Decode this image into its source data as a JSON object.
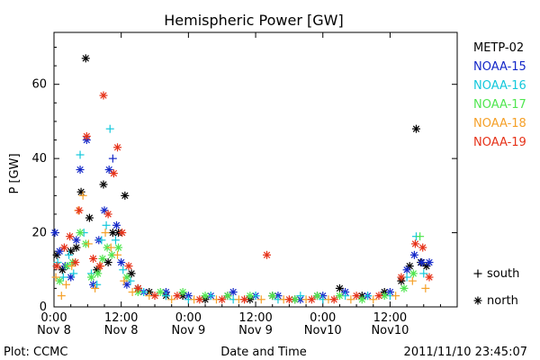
{
  "chart_data": {
    "type": "scatter",
    "title": "Hemispheric Power [GW]",
    "ylabel": "P [GW]",
    "xlabel": "Date and Time",
    "ylim": [
      0,
      74
    ],
    "xlim": [
      "2011-11-08 00:00",
      "2011-11-10 23:59"
    ],
    "yticks": [
      "0",
      "20",
      "40",
      "60"
    ],
    "yticks_values": [
      0,
      20,
      40,
      60
    ],
    "xticks": [
      {
        "time": "0:00",
        "date": "Nov 8"
      },
      {
        "time": "12:00",
        "date": "Nov 8"
      },
      {
        "time": "0:00",
        "date": "Nov 9"
      },
      {
        "time": "12:00",
        "date": "Nov 9"
      },
      {
        "time": "0:00",
        "date": "Nov10"
      },
      {
        "time": "12:00",
        "date": "Nov10"
      }
    ],
    "xticks_values": [
      "2011-11-08 00:00",
      "2011-11-08 12:00",
      "2011-11-09 00:00",
      "2011-11-09 12:00",
      "2011-11-10 00:00",
      "2011-11-10 12:00"
    ],
    "grid": false,
    "legend_position": "right",
    "marker_legend": [
      {
        "symbol": "+",
        "label": "south"
      },
      {
        "symbol": "*",
        "label": "north"
      }
    ],
    "series": [
      {
        "name": "METP-02",
        "color": "#000000",
        "points": [
          [
            "2011-11-08 00:30",
            14,
            "*"
          ],
          [
            "2011-11-08 01:30",
            10,
            "*"
          ],
          [
            "2011-11-08 03:00",
            15,
            "*"
          ],
          [
            "2011-11-08 04:00",
            16,
            "*"
          ],
          [
            "2011-11-08 04:50",
            31,
            "*"
          ],
          [
            "2011-11-08 05:40",
            67,
            "*"
          ],
          [
            "2011-11-08 06:20",
            24,
            "*"
          ],
          [
            "2011-11-08 07:40",
            10,
            "*"
          ],
          [
            "2011-11-08 08:50",
            33,
            "*"
          ],
          [
            "2011-11-08 09:40",
            12,
            "*"
          ],
          [
            "2011-11-08 10:30",
            20,
            "*"
          ],
          [
            "2011-11-08 11:30",
            20,
            "*"
          ],
          [
            "2011-11-08 12:40",
            30,
            "*"
          ],
          [
            "2011-11-08 13:50",
            9,
            "*"
          ],
          [
            "2011-11-08 15:00",
            5,
            "*"
          ],
          [
            "2011-11-08 17:00",
            4,
            "*"
          ],
          [
            "2011-11-08 20:00",
            3,
            "*"
          ],
          [
            "2011-11-08 23:00",
            3,
            "*"
          ],
          [
            "2011-11-09 03:00",
            2,
            "*"
          ],
          [
            "2011-11-09 07:00",
            3,
            "*"
          ],
          [
            "2011-11-09 11:00",
            2,
            "*"
          ],
          [
            "2011-11-09 15:00",
            3,
            "*"
          ],
          [
            "2011-11-09 19:00",
            2,
            "*"
          ],
          [
            "2011-11-09 23:00",
            3,
            "*"
          ],
          [
            "2011-11-10 03:00",
            5,
            "*"
          ],
          [
            "2011-11-10 07:00",
            3,
            "*"
          ],
          [
            "2011-11-10 11:00",
            4,
            "*"
          ],
          [
            "2011-11-10 14:00",
            7,
            "*"
          ],
          [
            "2011-11-10 15:30",
            11,
            "*"
          ],
          [
            "2011-11-10 16:40",
            48,
            "*"
          ],
          [
            "2011-11-10 17:30",
            12,
            "*"
          ],
          [
            "2011-11-10 18:30",
            11,
            "*"
          ]
        ]
      },
      {
        "name": "NOAA-15",
        "color": "#1428c8",
        "points": [
          [
            "2011-11-08 00:10",
            20,
            "*"
          ],
          [
            "2011-11-08 01:00",
            15,
            "*"
          ],
          [
            "2011-11-08 02:00",
            11,
            "*"
          ],
          [
            "2011-11-08 03:00",
            8,
            "*"
          ],
          [
            "2011-11-08 04:00",
            18,
            "*"
          ],
          [
            "2011-11-08 04:40",
            37,
            "*"
          ],
          [
            "2011-11-08 05:50",
            45,
            "*"
          ],
          [
            "2011-11-08 07:00",
            6,
            "*"
          ],
          [
            "2011-11-08 08:00",
            18,
            "*"
          ],
          [
            "2011-11-08 09:00",
            26,
            "*"
          ],
          [
            "2011-11-08 09:50",
            37,
            "*"
          ],
          [
            "2011-11-08 10:30",
            40,
            "+"
          ],
          [
            "2011-11-08 11:10",
            22,
            "*"
          ],
          [
            "2011-11-08 12:00",
            12,
            "*"
          ],
          [
            "2011-11-08 13:00",
            6,
            "*"
          ],
          [
            "2011-11-08 16:00",
            4,
            "*"
          ],
          [
            "2011-11-08 20:00",
            4,
            "*"
          ],
          [
            "2011-11-09 00:00",
            3,
            "*"
          ],
          [
            "2011-11-09 04:00",
            3,
            "*"
          ],
          [
            "2011-11-09 08:00",
            4,
            "*"
          ],
          [
            "2011-11-09 12:00",
            3,
            "*"
          ],
          [
            "2011-11-09 16:00",
            3,
            "*"
          ],
          [
            "2011-11-09 20:00",
            2,
            "*"
          ],
          [
            "2011-11-10 00:00",
            3,
            "*"
          ],
          [
            "2011-11-10 04:00",
            4,
            "*"
          ],
          [
            "2011-11-10 08:00",
            3,
            "*"
          ],
          [
            "2011-11-10 12:00",
            4,
            "*"
          ],
          [
            "2011-11-10 15:00",
            10,
            "*"
          ],
          [
            "2011-11-10 16:20",
            14,
            "*"
          ],
          [
            "2011-11-10 17:40",
            12,
            "*"
          ],
          [
            "2011-11-10 19:00",
            12,
            "*"
          ]
        ]
      },
      {
        "name": "NOAA-16",
        "color": "#14c8dc",
        "points": [
          [
            "2011-11-08 00:40",
            12,
            "+"
          ],
          [
            "2011-11-08 01:40",
            8,
            "+"
          ],
          [
            "2011-11-08 02:40",
            14,
            "+"
          ],
          [
            "2011-11-08 03:30",
            9,
            "+"
          ],
          [
            "2011-11-08 04:40",
            41,
            "+"
          ],
          [
            "2011-11-08 05:20",
            20,
            "+"
          ],
          [
            "2011-11-08 06:40",
            9,
            "+"
          ],
          [
            "2011-11-08 07:40",
            6,
            "+"
          ],
          [
            "2011-11-08 08:30",
            18,
            "+"
          ],
          [
            "2011-11-08 09:20",
            22,
            "+"
          ],
          [
            "2011-11-08 10:00",
            48,
            "+"
          ],
          [
            "2011-11-08 11:00",
            18,
            "+"
          ],
          [
            "2011-11-08 12:20",
            10,
            "+"
          ],
          [
            "2011-11-08 13:40",
            7,
            "+"
          ],
          [
            "2011-11-08 16:00",
            4,
            "+"
          ],
          [
            "2011-11-08 20:00",
            3,
            "+"
          ],
          [
            "2011-11-09 00:00",
            2,
            "+"
          ],
          [
            "2011-11-09 04:00",
            3,
            "+"
          ],
          [
            "2011-11-09 08:00",
            2,
            "+"
          ],
          [
            "2011-11-09 12:00",
            3,
            "+"
          ],
          [
            "2011-11-09 16:00",
            2,
            "+"
          ],
          [
            "2011-11-09 20:00",
            3,
            "+"
          ],
          [
            "2011-11-10 00:00",
            2,
            "+"
          ],
          [
            "2011-11-10 04:00",
            3,
            "+"
          ],
          [
            "2011-11-10 08:00",
            3,
            "+"
          ],
          [
            "2011-11-10 12:00",
            3,
            "+"
          ],
          [
            "2011-11-10 15:00",
            8,
            "+"
          ],
          [
            "2011-11-10 16:40",
            19,
            "+"
          ],
          [
            "2011-11-10 18:00",
            9,
            "+"
          ]
        ]
      },
      {
        "name": "NOAA-17",
        "color": "#50e650",
        "points": [
          [
            "2011-11-08 01:00",
            7,
            "*"
          ],
          [
            "2011-11-08 02:20",
            11,
            "*"
          ],
          [
            "2011-11-08 03:20",
            12,
            "*"
          ],
          [
            "2011-11-08 04:40",
            20,
            "*"
          ],
          [
            "2011-11-08 05:40",
            17,
            "*"
          ],
          [
            "2011-11-08 06:40",
            8,
            "*"
          ],
          [
            "2011-11-08 07:50",
            9,
            "*"
          ],
          [
            "2011-11-08 08:40",
            13,
            "*"
          ],
          [
            "2011-11-08 09:30",
            16,
            "*"
          ],
          [
            "2011-11-08 10:20",
            14,
            "*"
          ],
          [
            "2011-11-08 11:30",
            16,
            "*"
          ],
          [
            "2011-11-08 13:00",
            8,
            "*"
          ],
          [
            "2011-11-08 15:00",
            4,
            "*"
          ],
          [
            "2011-11-08 19:00",
            4,
            "*"
          ],
          [
            "2011-11-08 23:00",
            4,
            "*"
          ],
          [
            "2011-11-09 03:00",
            3,
            "*"
          ],
          [
            "2011-11-09 07:00",
            3,
            "*"
          ],
          [
            "2011-11-09 11:00",
            3,
            "*"
          ],
          [
            "2011-11-09 15:00",
            3,
            "*"
          ],
          [
            "2011-11-09 19:00",
            2,
            "*"
          ],
          [
            "2011-11-09 23:00",
            3,
            "*"
          ],
          [
            "2011-11-10 03:00",
            3,
            "*"
          ],
          [
            "2011-11-10 07:00",
            2,
            "*"
          ],
          [
            "2011-11-10 11:00",
            3,
            "*"
          ],
          [
            "2011-11-10 14:30",
            5,
            "*"
          ],
          [
            "2011-11-10 16:10",
            9,
            "*"
          ],
          [
            "2011-11-10 17:20",
            19,
            "+"
          ]
        ]
      },
      {
        "name": "NOAA-18",
        "color": "#f5a028",
        "points": [
          [
            "2011-11-08 00:20",
            8,
            "+"
          ],
          [
            "2011-11-08 01:20",
            3,
            "+"
          ],
          [
            "2011-11-08 02:10",
            6,
            "+"
          ],
          [
            "2011-11-08 03:10",
            11,
            "+"
          ],
          [
            "2011-11-08 04:20",
            26,
            "+"
          ],
          [
            "2011-11-08 05:10",
            30,
            "+"
          ],
          [
            "2011-11-08 06:10",
            17,
            "+"
          ],
          [
            "2011-11-08 07:20",
            5,
            "+"
          ],
          [
            "2011-11-08 08:20",
            11,
            "+"
          ],
          [
            "2011-11-08 09:10",
            20,
            "+"
          ],
          [
            "2011-11-08 10:10",
            16,
            "+"
          ],
          [
            "2011-11-08 11:20",
            14,
            "+"
          ],
          [
            "2011-11-08 12:30",
            7,
            "+"
          ],
          [
            "2011-11-08 14:00",
            4,
            "+"
          ],
          [
            "2011-11-08 17:00",
            3,
            "+"
          ],
          [
            "2011-11-08 21:00",
            2,
            "+"
          ],
          [
            "2011-11-09 01:00",
            2,
            "+"
          ],
          [
            "2011-11-09 05:00",
            2,
            "+"
          ],
          [
            "2011-11-09 09:00",
            2,
            "+"
          ],
          [
            "2011-11-09 13:00",
            2,
            "+"
          ],
          [
            "2011-11-09 17:00",
            2,
            "+"
          ],
          [
            "2011-11-09 21:00",
            2,
            "+"
          ],
          [
            "2011-11-10 01:00",
            2,
            "+"
          ],
          [
            "2011-11-10 05:00",
            2,
            "+"
          ],
          [
            "2011-11-10 09:00",
            2,
            "+"
          ],
          [
            "2011-11-10 13:00",
            3,
            "+"
          ],
          [
            "2011-11-10 16:00",
            7,
            "+"
          ],
          [
            "2011-11-10 18:20",
            5,
            "+"
          ]
        ]
      },
      {
        "name": "NOAA-19",
        "color": "#e63219",
        "points": [
          [
            "2011-11-08 00:30",
            11,
            "*"
          ],
          [
            "2011-11-08 01:50",
            16,
            "*"
          ],
          [
            "2011-11-08 02:50",
            19,
            "*"
          ],
          [
            "2011-11-08 03:50",
            12,
            "*"
          ],
          [
            "2011-11-08 04:30",
            26,
            "*"
          ],
          [
            "2011-11-08 05:50",
            46,
            "*"
          ],
          [
            "2011-11-08 07:00",
            13,
            "*"
          ],
          [
            "2011-11-08 08:10",
            11,
            "*"
          ],
          [
            "2011-11-08 08:50",
            57,
            "*"
          ],
          [
            "2011-11-08 09:40",
            25,
            "*"
          ],
          [
            "2011-11-08 10:40",
            36,
            "*"
          ],
          [
            "2011-11-08 11:20",
            43,
            "*"
          ],
          [
            "2011-11-08 12:10",
            20,
            "*"
          ],
          [
            "2011-11-08 13:20",
            11,
            "*"
          ],
          [
            "2011-11-08 15:00",
            5,
            "*"
          ],
          [
            "2011-11-08 18:00",
            3,
            "*"
          ],
          [
            "2011-11-08 22:00",
            3,
            "*"
          ],
          [
            "2011-11-09 02:00",
            2,
            "*"
          ],
          [
            "2011-11-09 06:00",
            2,
            "*"
          ],
          [
            "2011-11-09 10:00",
            2,
            "*"
          ],
          [
            "2011-11-09 14:00",
            14,
            "*"
          ],
          [
            "2011-11-09 18:00",
            2,
            "*"
          ],
          [
            "2011-11-09 22:00",
            2,
            "*"
          ],
          [
            "2011-11-10 02:00",
            2,
            "*"
          ],
          [
            "2011-11-10 06:00",
            3,
            "*"
          ],
          [
            "2011-11-10 10:00",
            3,
            "*"
          ],
          [
            "2011-11-10 14:00",
            8,
            "*"
          ],
          [
            "2011-11-10 16:30",
            17,
            "*"
          ],
          [
            "2011-11-10 17:50",
            16,
            "*"
          ],
          [
            "2011-11-10 19:00",
            8,
            "*"
          ]
        ]
      }
    ]
  },
  "footer": {
    "left": "Plot: CCMC",
    "right": "2011/11/10 23:45:07"
  }
}
